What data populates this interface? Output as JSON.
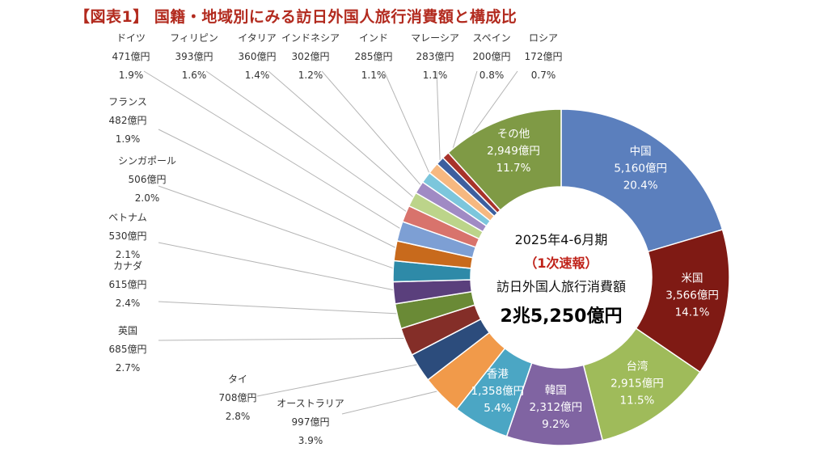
{
  "chart_data": {
    "type": "pie",
    "title": "【図表1】 国籍・地域別にみる訪日外国人旅行消費額と構成比",
    "center": {
      "period": "2025年4-6月期",
      "status": "（1次速報）",
      "metric": "訪日外国人旅行消費額",
      "total": "2兆5,250億円"
    },
    "slices": [
      {
        "name": "中国",
        "amount": "5,160億円",
        "share": "20.4%",
        "value": 20.4,
        "color": "#5b7fbd"
      },
      {
        "name": "米国",
        "amount": "3,566億円",
        "share": "14.1%",
        "value": 14.1,
        "color": "#7f1a14"
      },
      {
        "name": "台湾",
        "amount": "2,915億円",
        "share": "11.5%",
        "value": 11.5,
        "color": "#9fbb5a"
      },
      {
        "name": "韓国",
        "amount": "2,312億円",
        "share": "9.2%",
        "value": 9.2,
        "color": "#8064a2"
      },
      {
        "name": "香港",
        "amount": "1,358億円",
        "share": "5.4%",
        "value": 5.4,
        "color": "#4ba6c4"
      },
      {
        "name": "オーストラリア",
        "amount": "997億円",
        "share": "3.9%",
        "value": 3.9,
        "color": "#f19a4a"
      },
      {
        "name": "タイ",
        "amount": "708億円",
        "share": "2.8%",
        "value": 2.8,
        "color": "#2c4c7c"
      },
      {
        "name": "英国",
        "amount": "685億円",
        "share": "2.7%",
        "value": 2.7,
        "color": "#842e28"
      },
      {
        "name": "カナダ",
        "amount": "615億円",
        "share": "2.4%",
        "value": 2.4,
        "color": "#6a8a36"
      },
      {
        "name": "ベトナム",
        "amount": "530億円",
        "share": "2.1%",
        "value": 2.1,
        "color": "#5a3f7c"
      },
      {
        "name": "シンガポール",
        "amount": "506億円",
        "share": "2.0%",
        "value": 2.0,
        "color": "#2e8aa8"
      },
      {
        "name": "フランス",
        "amount": "482億円",
        "share": "1.9%",
        "value": 1.9,
        "color": "#c86a1c"
      },
      {
        "name": "ドイツ",
        "amount": "471億円",
        "share": "1.9%",
        "value": 1.9,
        "color": "#7d9fd4"
      },
      {
        "name": "フィリピン",
        "amount": "393億円",
        "share": "1.6%",
        "value": 1.6,
        "color": "#d8736c"
      },
      {
        "name": "イタリア",
        "amount": "360億円",
        "share": "1.4%",
        "value": 1.4,
        "color": "#bcd48a"
      },
      {
        "name": "インドネシア",
        "amount": "302億円",
        "share": "1.2%",
        "value": 1.2,
        "color": "#a08ac4"
      },
      {
        "name": "インド",
        "amount": "285億円",
        "share": "1.1%",
        "value": 1.1,
        "color": "#7cc6dc"
      },
      {
        "name": "マレーシア",
        "amount": "283億円",
        "share": "1.1%",
        "value": 1.1,
        "color": "#f6b880"
      },
      {
        "name": "スペイン",
        "amount": "200億円",
        "share": "0.8%",
        "value": 0.8,
        "color": "#3d5f9f"
      },
      {
        "name": "ロシア",
        "amount": "172億円",
        "share": "0.7%",
        "value": 0.7,
        "color": "#a8332b"
      },
      {
        "name": "その他",
        "amount": "2,949億円",
        "share": "11.7%",
        "value": 11.7,
        "color": "#7f9a45"
      }
    ]
  }
}
